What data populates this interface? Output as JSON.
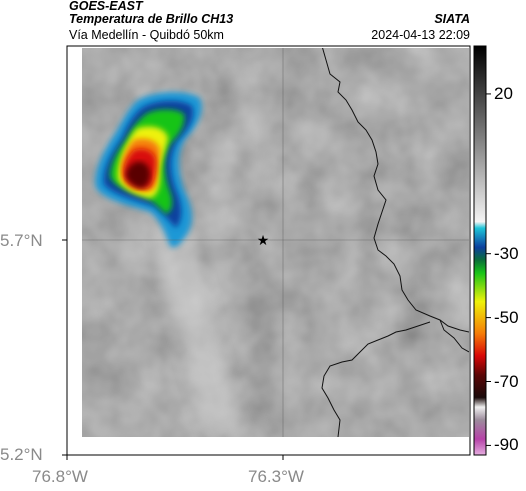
{
  "header": {
    "satellite": "GOES-EAST",
    "product": "Temperatura de Brillo CH13",
    "route": "Vía Medellín - Quibdó 50km",
    "organization": "SIATA",
    "datetime": "2024-04-13 22:09"
  },
  "axes": {
    "latitude_labels": [
      "5.7°N",
      "5.2°N"
    ],
    "longitude_labels": [
      "76.8°W",
      "76.3°W"
    ]
  },
  "colorbar": {
    "tick_labels": [
      "20",
      "-30",
      "-50",
      "-70",
      "-90"
    ],
    "tick_values": [
      20,
      -30,
      -50,
      -70,
      -90
    ],
    "range": [
      -93,
      35
    ],
    "stops": [
      {
        "value": 35,
        "color": "#000000"
      },
      {
        "value": -20,
        "color": "#f4f4f4"
      },
      {
        "value": -22,
        "color": "#1dc4d8"
      },
      {
        "value": -28,
        "color": "#0c3f9e"
      },
      {
        "value": -32,
        "color": "#0a6e3a"
      },
      {
        "value": -36,
        "color": "#18c418"
      },
      {
        "value": -45,
        "color": "#eef20a"
      },
      {
        "value": -55,
        "color": "#f57c07"
      },
      {
        "value": -62,
        "color": "#d80707"
      },
      {
        "value": -68,
        "color": "#5a0606"
      },
      {
        "value": -75,
        "color": "#1a0a0a"
      },
      {
        "value": -78,
        "color": "#f0f0f0"
      },
      {
        "value": -82,
        "color": "#9c8c9c"
      },
      {
        "value": -88,
        "color": "#b642a8"
      },
      {
        "value": -93,
        "color": "#e6aee0"
      }
    ]
  },
  "map": {
    "marker": "star-icon",
    "background_color": "#8e8e8e",
    "cloud_palette": [
      "#1e98d6",
      "#0c3f9e",
      "#18c418",
      "#eef20a",
      "#f57c07",
      "#d80707",
      "#5a0606"
    ]
  }
}
